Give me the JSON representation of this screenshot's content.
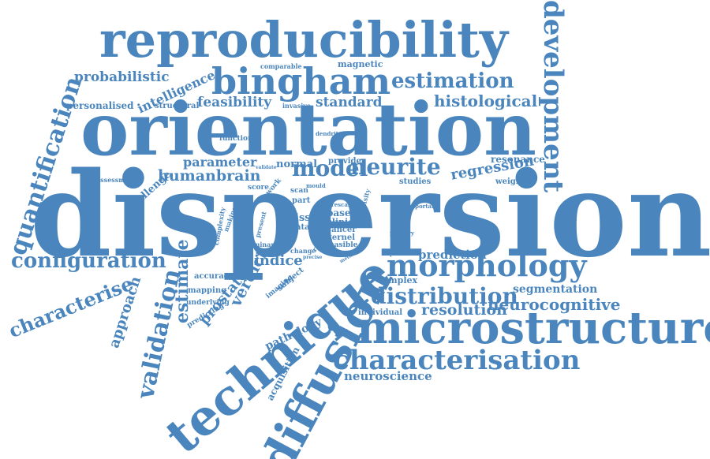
{
  "color": "#4a86bd",
  "words": [
    {
      "text": "dispersion"
    },
    {
      "text": "orientation"
    },
    {
      "text": "reproducibility"
    },
    {
      "text": "microstructure"
    },
    {
      "text": "technique"
    },
    {
      "text": "diffusion"
    },
    {
      "text": "bingham"
    },
    {
      "text": "characterisation"
    },
    {
      "text": "morphology"
    },
    {
      "text": "development"
    },
    {
      "text": "quantification"
    },
    {
      "text": "configuration"
    },
    {
      "text": "estimation"
    },
    {
      "text": "distribution"
    },
    {
      "text": "validation"
    },
    {
      "text": "characterise"
    },
    {
      "text": "model"
    },
    {
      "text": "neurite"
    },
    {
      "text": "histological"
    },
    {
      "text": "neurocognitive"
    },
    {
      "text": "humanbrain"
    },
    {
      "text": "resolution"
    },
    {
      "text": "probabilistic"
    },
    {
      "text": "feasibility"
    },
    {
      "text": "standard"
    },
    {
      "text": "intelligence"
    },
    {
      "text": "regression"
    },
    {
      "text": "prediction"
    },
    {
      "text": "segmentation"
    },
    {
      "text": "estimate"
    },
    {
      "text": "approach"
    },
    {
      "text": "verdict"
    },
    {
      "text": "prostate"
    },
    {
      "text": "indice"
    },
    {
      "text": "parameter"
    },
    {
      "text": "neuroscience"
    },
    {
      "text": "personalised"
    },
    {
      "text": "resonance"
    },
    {
      "text": "magnetic"
    },
    {
      "text": "structural"
    },
    {
      "text": "pathology"
    },
    {
      "text": "acquisition"
    },
    {
      "text": "challenge"
    },
    {
      "text": "normal"
    },
    {
      "text": "tissue"
    },
    {
      "text": "based"
    },
    {
      "text": "clinical"
    },
    {
      "text": "cancer"
    },
    {
      "text": "kernel"
    },
    {
      "text": "feasible"
    },
    {
      "text": "complex"
    },
    {
      "text": "individual"
    },
    {
      "text": "weighted"
    },
    {
      "text": "provide"
    },
    {
      "text": "studies"
    },
    {
      "text": "accuracy"
    },
    {
      "text": "mapping"
    },
    {
      "text": "predicting"
    },
    {
      "text": "underlying"
    },
    {
      "text": "imaging"
    },
    {
      "text": "subject"
    },
    {
      "text": "comparable"
    },
    {
      "text": "invasive"
    },
    {
      "text": "function"
    },
    {
      "text": "assessment"
    },
    {
      "text": "score"
    },
    {
      "text": "work"
    },
    {
      "text": "data"
    },
    {
      "text": "part"
    },
    {
      "text": "scan"
    },
    {
      "text": "present"
    },
    {
      "text": "complexity"
    },
    {
      "text": "making"
    },
    {
      "text": "dominant"
    },
    {
      "text": "change"
    },
    {
      "text": "precision"
    },
    {
      "text": "primary"
    },
    {
      "text": "important"
    },
    {
      "text": "mould"
    },
    {
      "text": "rescan"
    },
    {
      "text": "density"
    },
    {
      "text": "result"
    },
    {
      "text": "dendrite"
    },
    {
      "text": "validate"
    },
    {
      "text": "rectal"
    },
    {
      "text": "leader"
    },
    {
      "text": "method"
    },
    {
      "text": "precise"
    }
  ]
}
